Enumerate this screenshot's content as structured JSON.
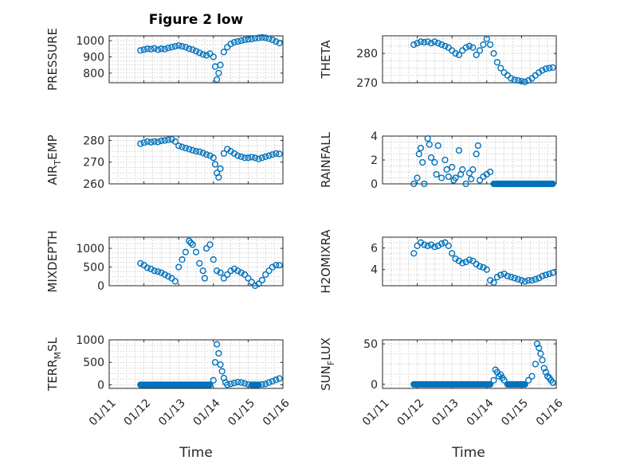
{
  "figure": {
    "title": "Figure 2 low",
    "marker_color": "#0072BD",
    "xtick_labels": [
      "01/11",
      "01/12",
      "01/13",
      "01/14",
      "01/15",
      "01/16"
    ],
    "xlabel": "Time"
  },
  "chart_data": [
    {
      "type": "scatter",
      "title": "Figure 2 low",
      "ylabel": "PRESSURE",
      "ylim": [
        740,
        1030
      ],
      "yticks": [
        800,
        900,
        1000
      ],
      "ytick_labels": [
        "800",
        "900",
        "1000"
      ],
      "xlim": [
        11,
        16
      ],
      "grid": true,
      "x": [
        11.9,
        12.0,
        12.1,
        12.2,
        12.3,
        12.4,
        12.5,
        12.6,
        12.7,
        12.8,
        12.9,
        13.0,
        13.1,
        13.2,
        13.3,
        13.4,
        13.5,
        13.6,
        13.7,
        13.8,
        13.9,
        14.0,
        14.05,
        14.1,
        14.15,
        14.2,
        14.3,
        14.4,
        14.5,
        14.6,
        14.7,
        14.8,
        14.9,
        15.0,
        15.1,
        15.2,
        15.3,
        15.4,
        15.5,
        15.6,
        15.7,
        15.8,
        15.9
      ],
      "y": [
        940,
        945,
        950,
        948,
        952,
        945,
        950,
        948,
        955,
        960,
        965,
        970,
        965,
        960,
        950,
        945,
        935,
        925,
        915,
        910,
        920,
        900,
        840,
        760,
        800,
        850,
        930,
        960,
        980,
        990,
        995,
        1000,
        1005,
        1008,
        1010,
        1015,
        1018,
        1020,
        1018,
        1012,
        1005,
        995,
        985
      ]
    },
    {
      "type": "scatter",
      "ylabel": "THETA",
      "ylim": [
        270,
        286
      ],
      "yticks": [
        270,
        280
      ],
      "ytick_labels": [
        "270",
        "280"
      ],
      "xlim": [
        11,
        16
      ],
      "grid": true,
      "x": [
        11.9,
        12.0,
        12.1,
        12.2,
        12.3,
        12.4,
        12.5,
        12.6,
        12.7,
        12.8,
        12.9,
        13.0,
        13.1,
        13.2,
        13.3,
        13.4,
        13.5,
        13.6,
        13.7,
        13.8,
        13.9,
        14.0,
        14.1,
        14.2,
        14.3,
        14.4,
        14.5,
        14.6,
        14.7,
        14.8,
        14.9,
        15.0,
        15.1,
        15.2,
        15.3,
        15.4,
        15.5,
        15.6,
        15.7,
        15.8,
        15.9
      ],
      "y": [
        283,
        283.5,
        284,
        283.8,
        284,
        283.5,
        284,
        283.5,
        283,
        282.5,
        282,
        281,
        280,
        279.5,
        281,
        282,
        282.5,
        282,
        279.5,
        281,
        283,
        285,
        283,
        280,
        277,
        275,
        273.5,
        272.5,
        271.5,
        271,
        270.8,
        270.5,
        270.3,
        270.8,
        271.5,
        272.5,
        273.5,
        274.2,
        274.8,
        275,
        275.2
      ]
    },
    {
      "type": "scatter",
      "ylabel": "AIR_TEMP",
      "ylim": [
        260,
        282
      ],
      "yticks": [
        260,
        270,
        280
      ],
      "ytick_labels": [
        "260",
        "270",
        "280"
      ],
      "xlim": [
        11,
        16
      ],
      "grid": true,
      "x": [
        11.9,
        12.0,
        12.1,
        12.2,
        12.3,
        12.4,
        12.5,
        12.6,
        12.7,
        12.8,
        12.9,
        13.0,
        13.1,
        13.2,
        13.3,
        13.4,
        13.5,
        13.6,
        13.7,
        13.8,
        13.9,
        14.0,
        14.05,
        14.1,
        14.15,
        14.2,
        14.3,
        14.4,
        14.5,
        14.6,
        14.7,
        14.8,
        14.9,
        15.0,
        15.1,
        15.2,
        15.3,
        15.4,
        15.5,
        15.6,
        15.7,
        15.8,
        15.9
      ],
      "y": [
        278.5,
        279,
        279.5,
        279.2,
        279.5,
        279.3,
        279.8,
        280,
        280.3,
        280.5,
        279.5,
        277.5,
        277,
        276.5,
        276,
        275.5,
        275,
        274.8,
        274.2,
        273.5,
        273,
        272,
        269,
        265,
        263,
        267,
        274,
        276,
        275,
        274,
        273,
        272.5,
        272,
        272,
        272.3,
        272,
        271.5,
        272,
        272.5,
        273,
        273.5,
        274,
        273.8
      ]
    },
    {
      "type": "scatter",
      "ylabel": "RAINFALL",
      "ylim": [
        0,
        4
      ],
      "yticks": [
        0,
        2,
        4
      ],
      "ytick_labels": [
        "0",
        "2",
        "4"
      ],
      "xlim": [
        11,
        16
      ],
      "grid": true,
      "x": [
        11.9,
        12.0,
        12.05,
        12.1,
        12.15,
        12.2,
        12.3,
        12.35,
        12.4,
        12.5,
        12.55,
        12.6,
        12.7,
        12.8,
        12.85,
        12.9,
        13.0,
        13.05,
        13.1,
        13.2,
        13.25,
        13.3,
        13.4,
        13.5,
        13.55,
        13.6,
        13.7,
        13.75,
        13.8,
        13.9,
        14.0,
        14.1,
        14.2,
        14.3,
        14.4,
        14.5,
        14.6,
        14.7,
        14.8,
        14.9,
        15.0,
        15.1,
        15.2,
        15.3,
        15.4,
        15.5,
        15.6,
        15.7,
        15.8,
        15.9
      ],
      "y": [
        0,
        0.5,
        2.5,
        3.0,
        1.8,
        0,
        3.8,
        3.3,
        2.2,
        1.8,
        0.8,
        3.2,
        0.5,
        2.0,
        1.2,
        0.6,
        1.4,
        0.3,
        0.5,
        2.8,
        0.8,
        1.2,
        0,
        0.9,
        0.4,
        1.2,
        2.5,
        3.2,
        0.3,
        0.6,
        0.8,
        1.0,
        0,
        0,
        0,
        0,
        0,
        0,
        0,
        0,
        0,
        0,
        0,
        0,
        0,
        0,
        0,
        0,
        0,
        0
      ]
    },
    {
      "type": "scatter",
      "ylabel": "MIXDEPTH",
      "ylim": [
        0,
        1300
      ],
      "yticks": [
        0,
        500,
        1000
      ],
      "ytick_labels": [
        "0",
        "500",
        "1000"
      ],
      "xlim": [
        11,
        16
      ],
      "grid": true,
      "x": [
        11.9,
        12.0,
        12.1,
        12.2,
        12.3,
        12.4,
        12.5,
        12.6,
        12.7,
        12.8,
        12.9,
        13.0,
        13.1,
        13.2,
        13.3,
        13.35,
        13.4,
        13.5,
        13.6,
        13.7,
        13.75,
        13.8,
        13.9,
        14.0,
        14.1,
        14.2,
        14.3,
        14.4,
        14.5,
        14.6,
        14.7,
        14.8,
        14.9,
        15.0,
        15.1,
        15.2,
        15.3,
        15.4,
        15.5,
        15.6,
        15.7,
        15.8,
        15.9
      ],
      "y": [
        600,
        550,
        480,
        450,
        400,
        380,
        350,
        300,
        250,
        200,
        120,
        500,
        700,
        900,
        1200,
        1150,
        1100,
        900,
        600,
        400,
        200,
        1000,
        1100,
        700,
        400,
        350,
        200,
        300,
        400,
        450,
        400,
        350,
        300,
        200,
        100,
        0,
        50,
        150,
        300,
        400,
        500,
        550,
        550
      ]
    },
    {
      "type": "scatter",
      "ylabel": "H2OMIXRA",
      "ylim": [
        2.5,
        7
      ],
      "yticks": [
        4,
        6
      ],
      "ytick_labels": [
        "4",
        "6"
      ],
      "xlim": [
        11,
        16
      ],
      "grid": true,
      "x": [
        11.9,
        12.0,
        12.1,
        12.2,
        12.3,
        12.4,
        12.5,
        12.6,
        12.7,
        12.8,
        12.9,
        13.0,
        13.1,
        13.2,
        13.3,
        13.4,
        13.5,
        13.6,
        13.7,
        13.8,
        13.9,
        14.0,
        14.1,
        14.2,
        14.3,
        14.4,
        14.5,
        14.6,
        14.7,
        14.8,
        14.9,
        15.0,
        15.1,
        15.2,
        15.3,
        15.4,
        15.5,
        15.6,
        15.7,
        15.8,
        15.9
      ],
      "y": [
        5.5,
        6.2,
        6.5,
        6.3,
        6.2,
        6.3,
        6.1,
        6.2,
        6.4,
        6.5,
        6.2,
        5.5,
        5.0,
        4.8,
        4.6,
        4.7,
        4.9,
        4.8,
        4.5,
        4.3,
        4.2,
        4.0,
        3.0,
        2.8,
        3.3,
        3.5,
        3.6,
        3.4,
        3.3,
        3.2,
        3.1,
        3.0,
        2.9,
        3.0,
        3.0,
        3.1,
        3.2,
        3.4,
        3.5,
        3.6,
        3.7
      ]
    },
    {
      "type": "scatter",
      "ylabel": "TERR_MSL",
      "ylim": [
        -80,
        1000
      ],
      "yticks": [
        0,
        500,
        1000
      ],
      "ytick_labels": [
        "0",
        "500",
        "1000"
      ],
      "xlim": [
        11,
        16
      ],
      "grid": true,
      "x": [
        11.9,
        12.1,
        12.3,
        12.5,
        12.7,
        12.9,
        13.1,
        13.3,
        13.5,
        13.7,
        13.9,
        14.0,
        14.05,
        14.1,
        14.15,
        14.2,
        14.25,
        14.3,
        14.35,
        14.4,
        14.5,
        14.6,
        14.7,
        14.8,
        14.9,
        15.0,
        15.1,
        15.2,
        15.3,
        15.4,
        15.5,
        15.6,
        15.7,
        15.8,
        15.9
      ],
      "y": [
        0,
        0,
        0,
        0,
        0,
        0,
        0,
        0,
        0,
        0,
        0,
        100,
        500,
        900,
        700,
        450,
        300,
        150,
        50,
        0,
        20,
        40,
        60,
        50,
        30,
        10,
        0,
        0,
        0,
        10,
        20,
        50,
        80,
        110,
        140
      ]
    },
    {
      "type": "scatter",
      "ylabel": "SUN_FLUX",
      "ylim": [
        -5,
        55
      ],
      "yticks": [
        0,
        50
      ],
      "ytick_labels": [
        "0",
        "50"
      ],
      "xlim": [
        11,
        16
      ],
      "grid": true,
      "x": [
        11.9,
        12.1,
        12.3,
        12.5,
        12.7,
        12.9,
        13.1,
        13.3,
        13.5,
        13.7,
        13.9,
        14.1,
        14.2,
        14.25,
        14.3,
        14.35,
        14.4,
        14.45,
        14.5,
        14.6,
        14.7,
        14.8,
        14.9,
        15.0,
        15.1,
        15.2,
        15.3,
        15.4,
        15.45,
        15.5,
        15.55,
        15.6,
        15.65,
        15.7,
        15.75,
        15.8,
        15.85,
        15.9
      ],
      "y": [
        0,
        0,
        0,
        0,
        0,
        0,
        0,
        0,
        0,
        0,
        0,
        0,
        5,
        18,
        15,
        10,
        12,
        8,
        5,
        0,
        0,
        0,
        0,
        0,
        0,
        5,
        10,
        25,
        50,
        45,
        38,
        30,
        20,
        15,
        10,
        8,
        5,
        2
      ]
    }
  ]
}
